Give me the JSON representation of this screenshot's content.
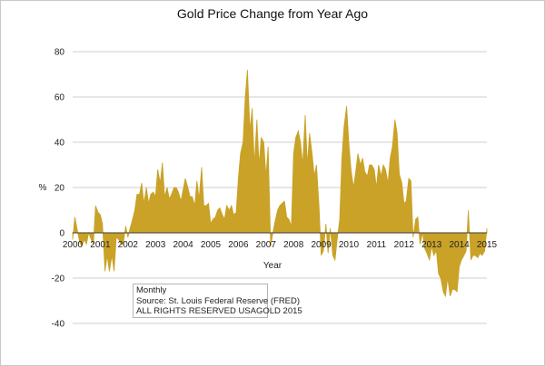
{
  "chart_data": {
    "type": "area",
    "title": "Gold Price Change from Year Ago",
    "xlabel": "Year",
    "ylabel": "%",
    "xlim": [
      2000,
      2015
    ],
    "ylim": [
      -40,
      80
    ],
    "yticks": [
      -40,
      -20,
      0,
      20,
      40,
      60,
      80
    ],
    "xticks": [
      "2000",
      "2001",
      "2002",
      "2003",
      "2004",
      "2005",
      "2006",
      "2007",
      "2008",
      "2009",
      "2010",
      "2011",
      "2012",
      "2013",
      "2014",
      "2015"
    ],
    "grid": true,
    "legend": "none",
    "series": [
      {
        "color": "#c9a227",
        "x": [
          2000.0,
          2000.08,
          2000.17,
          2000.25,
          2000.33,
          2000.42,
          2000.5,
          2000.58,
          2000.67,
          2000.75,
          2000.83,
          2000.92,
          2001.0,
          2001.08,
          2001.17,
          2001.25,
          2001.33,
          2001.42,
          2001.5,
          2001.58,
          2001.67,
          2001.75,
          2001.83,
          2001.92,
          2002.0,
          2002.08,
          2002.17,
          2002.25,
          2002.33,
          2002.42,
          2002.5,
          2002.58,
          2002.67,
          2002.75,
          2002.83,
          2002.92,
          2003.0,
          2003.08,
          2003.17,
          2003.25,
          2003.33,
          2003.42,
          2003.5,
          2003.58,
          2003.67,
          2003.75,
          2003.83,
          2003.92,
          2004.0,
          2004.08,
          2004.17,
          2004.25,
          2004.33,
          2004.42,
          2004.5,
          2004.58,
          2004.67,
          2004.75,
          2004.83,
          2004.92,
          2005.0,
          2005.08,
          2005.17,
          2005.25,
          2005.33,
          2005.42,
          2005.5,
          2005.58,
          2005.67,
          2005.75,
          2005.83,
          2005.92,
          2006.0,
          2006.08,
          2006.17,
          2006.25,
          2006.33,
          2006.42,
          2006.5,
          2006.58,
          2006.67,
          2006.75,
          2006.83,
          2006.92,
          2007.0,
          2007.08,
          2007.17,
          2007.25,
          2007.33,
          2007.42,
          2007.5,
          2007.58,
          2007.67,
          2007.75,
          2007.83,
          2007.92,
          2008.0,
          2008.08,
          2008.17,
          2008.25,
          2008.33,
          2008.42,
          2008.5,
          2008.58,
          2008.67,
          2008.75,
          2008.83,
          2008.92,
          2009.0,
          2009.08,
          2009.17,
          2009.25,
          2009.33,
          2009.42,
          2009.5,
          2009.58,
          2009.67,
          2009.75,
          2009.83,
          2009.92,
          2010.0,
          2010.08,
          2010.17,
          2010.25,
          2010.33,
          2010.42,
          2010.5,
          2010.58,
          2010.67,
          2010.75,
          2010.83,
          2010.92,
          2011.0,
          2011.08,
          2011.17,
          2011.25,
          2011.33,
          2011.42,
          2011.5,
          2011.58,
          2011.67,
          2011.75,
          2011.83,
          2011.92,
          2012.0,
          2012.08,
          2012.17,
          2012.25,
          2012.33,
          2012.42,
          2012.5,
          2012.58,
          2012.67,
          2012.75,
          2012.83,
          2012.92,
          2013.0,
          2013.08,
          2013.17,
          2013.25,
          2013.33,
          2013.42,
          2013.5,
          2013.58,
          2013.67,
          2013.75,
          2013.83,
          2013.92,
          2014.0,
          2014.08,
          2014.17,
          2014.25,
          2014.33,
          2014.42,
          2014.5,
          2014.58,
          2014.67,
          2014.75,
          2014.83,
          2014.92,
          2015.0
        ],
        "y": [
          -3,
          7,
          1,
          -4,
          -6,
          -3,
          -5,
          0,
          -3,
          -5,
          12,
          9,
          8,
          4,
          -17,
          -10,
          -17,
          -10,
          -17,
          -2,
          -3,
          -5,
          -5,
          3,
          -2,
          2,
          6,
          10,
          17,
          17,
          22,
          13,
          20,
          13,
          17,
          18,
          16,
          28,
          22,
          31,
          16,
          20,
          15,
          17,
          20,
          20,
          18,
          14,
          19,
          24,
          20,
          16,
          16,
          12,
          23,
          15,
          29,
          12,
          12,
          13,
          4,
          6,
          7,
          10,
          11,
          8,
          6,
          12,
          10,
          12,
          8,
          9,
          24,
          35,
          40,
          60,
          72,
          45,
          55,
          30,
          50,
          30,
          42,
          40,
          25,
          38,
          -6,
          0,
          5,
          10,
          12,
          13,
          14,
          7,
          6,
          3,
          35,
          42,
          45,
          40,
          30,
          52,
          30,
          44,
          35,
          25,
          30,
          12,
          -10,
          -8,
          4,
          -9,
          2,
          -10,
          -12,
          -3,
          6,
          33,
          47,
          56,
          40,
          28,
          20,
          27,
          35,
          30,
          33,
          27,
          25,
          30,
          30,
          28,
          20,
          30,
          25,
          30,
          28,
          22,
          33,
          38,
          50,
          44,
          26,
          22,
          13,
          14,
          24,
          23,
          -2,
          6,
          7,
          -5,
          0,
          -7,
          -9,
          -12,
          -6,
          -10,
          -8,
          -18,
          -20,
          -26,
          -28,
          -20,
          -28,
          -25,
          -25,
          -26,
          -15,
          -12,
          -10,
          -8,
          10,
          -12,
          -10,
          -10,
          -11,
          -9,
          -10,
          -8,
          2
        ]
      }
    ],
    "annotation": {
      "lines": [
        "Monthly",
        "Source: St. Louis Federal Reserve (FRED)",
        "ALL RIGHTS RESERVED USAGOLD 2015"
      ]
    }
  }
}
